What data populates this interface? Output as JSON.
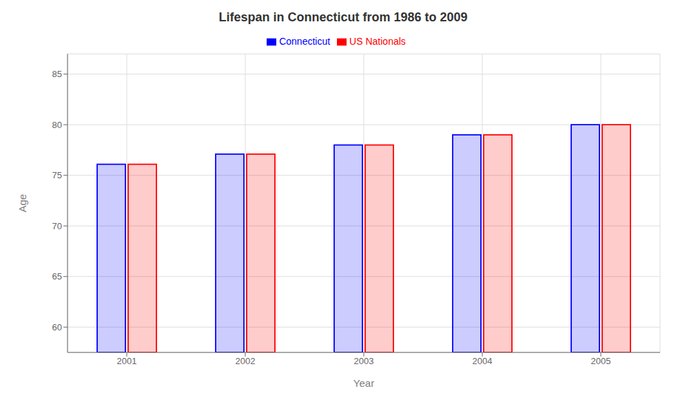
{
  "chart_data": {
    "type": "bar",
    "title": "Lifespan in Connecticut from 1986 to 2009",
    "x_label": "Year",
    "y_label": "Age",
    "categories": [
      "2001",
      "2002",
      "2003",
      "2004",
      "2005"
    ],
    "series": [
      {
        "name": "Connecticut",
        "color": "#0000ff",
        "values": [
          76.1,
          77.1,
          78.0,
          79.0,
          80.0
        ]
      },
      {
        "name": "US Nationals",
        "color": "#ff0000",
        "values": [
          76.1,
          77.1,
          78.0,
          79.0,
          80.0
        ]
      }
    ],
    "ylim": [
      57.5,
      87
    ],
    "yticks": [
      60,
      65,
      70,
      75,
      80,
      85
    ],
    "grid": true,
    "legend": "top"
  }
}
